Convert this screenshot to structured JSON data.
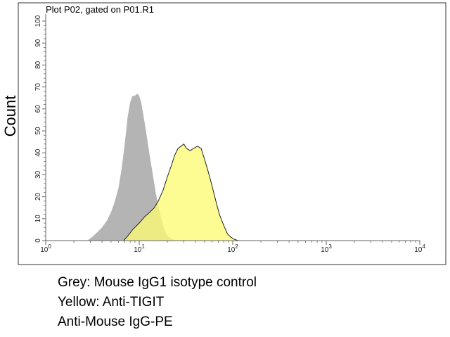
{
  "figure": {
    "ylabel": "Count",
    "plot_title": "Plot P02, gated on P01.R1",
    "captions": [
      "Grey: Mouse IgG1 isotype control",
      "Yellow: Anti-TIGIT",
      "Anti-Mouse IgG-PE"
    ]
  },
  "chart_data": {
    "type": "area",
    "title": "Plot P02, gated on P01.R1",
    "xlabel": "",
    "ylabel": "Count",
    "x_scale": "log",
    "xlim": [
      1,
      10000
    ],
    "ylim": [
      0,
      100
    ],
    "x_ticks": [
      {
        "base": "10",
        "exp": "0"
      },
      {
        "base": "10",
        "exp": "1"
      },
      {
        "base": "10",
        "exp": "2"
      },
      {
        "base": "10",
        "exp": "3"
      },
      {
        "base": "10",
        "exp": "4"
      }
    ],
    "y_ticks": [
      "0",
      "10",
      "20",
      "30",
      "40",
      "50",
      "60",
      "70",
      "80",
      "90",
      "100"
    ],
    "grid": false,
    "colors": {
      "grey_fill": "#b4b4b4",
      "yellow_fill": "#fbfb73",
      "yellow_edge": "#222222",
      "axis": "#666666"
    },
    "series": [
      {
        "color": "grey",
        "x": [
          2.8,
          3.2,
          3.6,
          4.0,
          4.5,
          5.0,
          5.5,
          6.0,
          6.5,
          7.0,
          7.5,
          8.0,
          8.5,
          9.0,
          9.5,
          10.0,
          10.5,
          11.0,
          11.5,
          12.0,
          12.5,
          13.0,
          14.0,
          15.0,
          16.0,
          17.0,
          18.0,
          19.0,
          20.0,
          22.0,
          24.0
        ],
        "y": [
          0,
          2,
          4,
          6,
          9,
          13,
          18,
          24,
          33,
          44,
          56,
          63,
          66,
          66,
          67,
          66,
          63,
          58,
          53,
          48,
          43,
          38,
          30,
          22,
          16,
          11,
          7,
          4,
          2,
          1,
          0
        ]
      },
      {
        "color": "yellow",
        "x": [
          6.8,
          7.5,
          8.5,
          10.0,
          11.5,
          13.0,
          14.5,
          16.0,
          18.0,
          20.0,
          22.0,
          24.0,
          26.0,
          28.0,
          30.0,
          32.0,
          35.0,
          38.0,
          42.0,
          46.0,
          50.0,
          55.0,
          60.0,
          66.0,
          72.0,
          80.0,
          88.0,
          96.0,
          105.0,
          115.0
        ],
        "y": [
          0,
          2,
          5,
          8,
          11,
          13,
          15,
          18,
          23,
          29,
          34,
          39,
          42,
          43,
          44,
          42,
          41,
          42,
          43,
          42,
          37,
          31,
          25,
          18,
          12,
          7,
          3,
          1.5,
          0.5,
          0
        ]
      }
    ]
  }
}
